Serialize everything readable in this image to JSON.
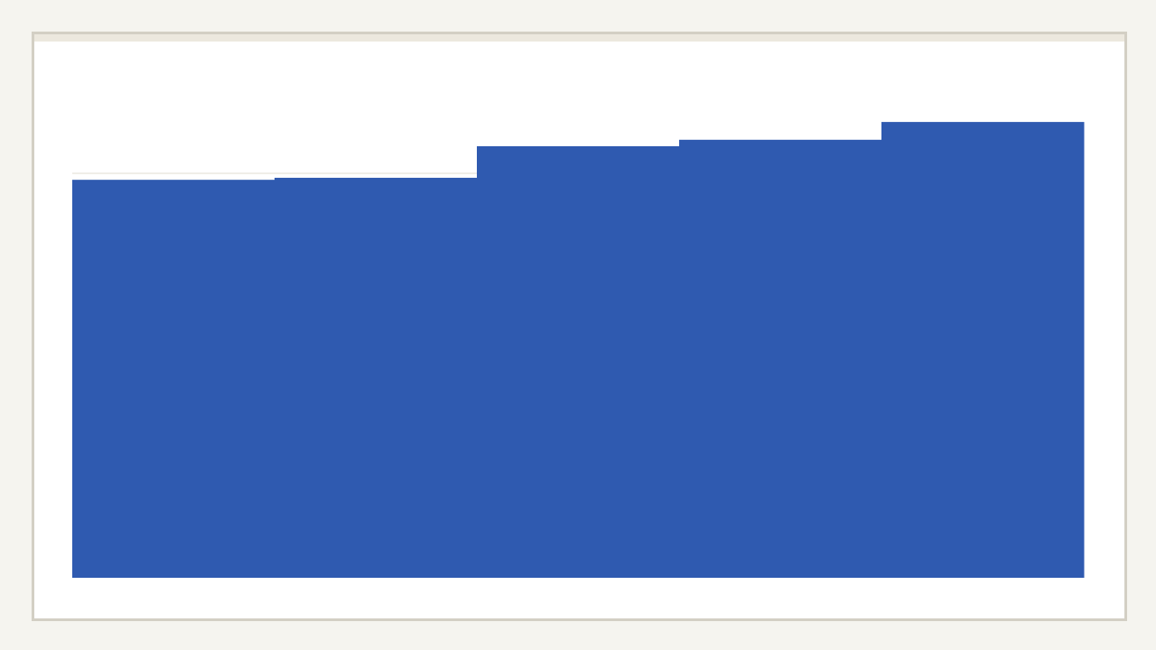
{
  "chart_data": {
    "type": "bar",
    "categories": [
      "",
      "",
      "",
      "",
      ""
    ],
    "values": [
      98.4,
      98.9,
      106.7,
      108.3,
      112.7
    ],
    "reference_line": 100,
    "ylim": [
      0,
      130
    ],
    "grid": false,
    "title": "",
    "xlabel": "",
    "ylabel": "",
    "colors": {
      "bar": "#2f5ab0",
      "reference_line": "#e2ddd0",
      "card_border": "#d3cfc4",
      "background": "#f5f4ef"
    }
  }
}
